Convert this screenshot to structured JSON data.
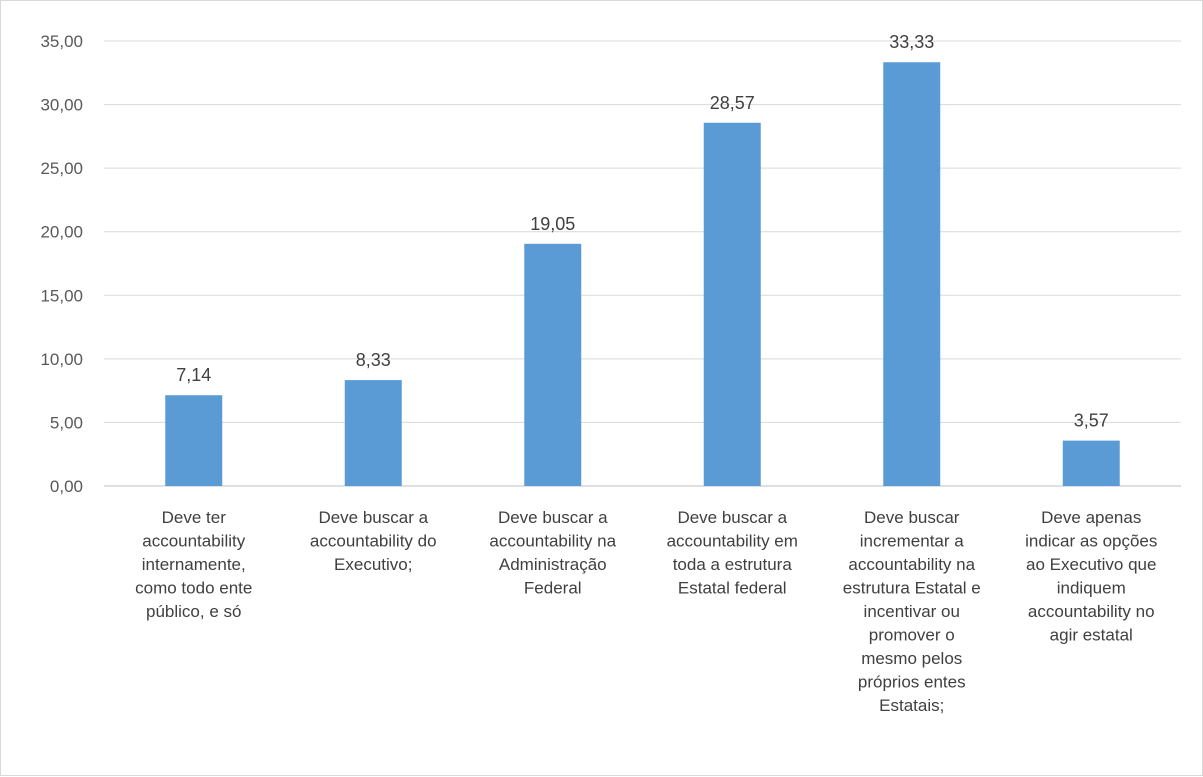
{
  "chart_data": {
    "type": "bar",
    "title": "",
    "xlabel": "",
    "ylabel": "",
    "ylim": [
      0,
      35
    ],
    "ytick_step": 5,
    "ytick_labels": [
      "0,00",
      "5,00",
      "10,00",
      "15,00",
      "20,00",
      "25,00",
      "30,00",
      "35,00"
    ],
    "grid": true,
    "legend": "none",
    "bar_color": "#5b9bd5",
    "grid_color": "#d9d9d9",
    "categories": [
      [
        "Deve ter",
        "accountability",
        "internamente,",
        "como todo ente",
        "público, e só"
      ],
      [
        "Deve buscar a",
        "accountability do",
        "Executivo;"
      ],
      [
        "Deve buscar a",
        "accountability na",
        "Administração",
        "Federal"
      ],
      [
        "Deve buscar a",
        "accountability em",
        "toda a estrutura",
        "Estatal federal"
      ],
      [
        "Deve buscar",
        "incrementar a",
        "accountability na",
        "estrutura Estatal e",
        "incentivar ou",
        "promover o",
        "mesmo pelos",
        "próprios entes",
        "Estatais;"
      ],
      [
        "Deve apenas",
        "indicar as opções",
        "ao Executivo que",
        "indiquem",
        "accountability no",
        "agir estatal"
      ]
    ],
    "values": [
      7.14,
      8.33,
      19.05,
      28.57,
      33.33,
      3.57
    ],
    "data_labels": [
      "7,14",
      "8,33",
      "19,05",
      "28,57",
      "33,33",
      "3,57"
    ]
  }
}
